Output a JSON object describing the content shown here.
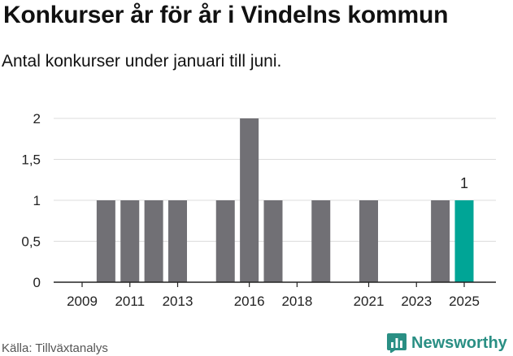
{
  "title": "Konkurser år för år i Vindelns kommun",
  "subtitle": "Antal konkurser under januari till juni.",
  "source": "Källa: Tillväxtanalys",
  "brand": {
    "name": "Newsworthy",
    "icon": "newsworthy-chart-icon"
  },
  "colors": {
    "bar": "#717075",
    "highlight": "#00a596",
    "brand": "#2a8f84"
  },
  "chart_data": {
    "type": "bar",
    "x": [
      2009,
      2010,
      2011,
      2012,
      2013,
      2014,
      2015,
      2016,
      2017,
      2018,
      2019,
      2020,
      2021,
      2022,
      2023,
      2024,
      2025
    ],
    "values": [
      0,
      1,
      1,
      1,
      1,
      0,
      1,
      2,
      1,
      0,
      1,
      0,
      1,
      0,
      0,
      1,
      1
    ],
    "x_tick_labels": [
      "2009",
      "2011",
      "2013",
      "2016",
      "2018",
      "2021",
      "2023",
      "2025"
    ],
    "y_tick_labels": [
      "0",
      "0,5",
      "1",
      "1,5",
      "2"
    ],
    "ylim": [
      0,
      2
    ],
    "highlight": {
      "x": 2025,
      "label": "1"
    },
    "grid": true,
    "xlabel": "",
    "ylabel": ""
  }
}
